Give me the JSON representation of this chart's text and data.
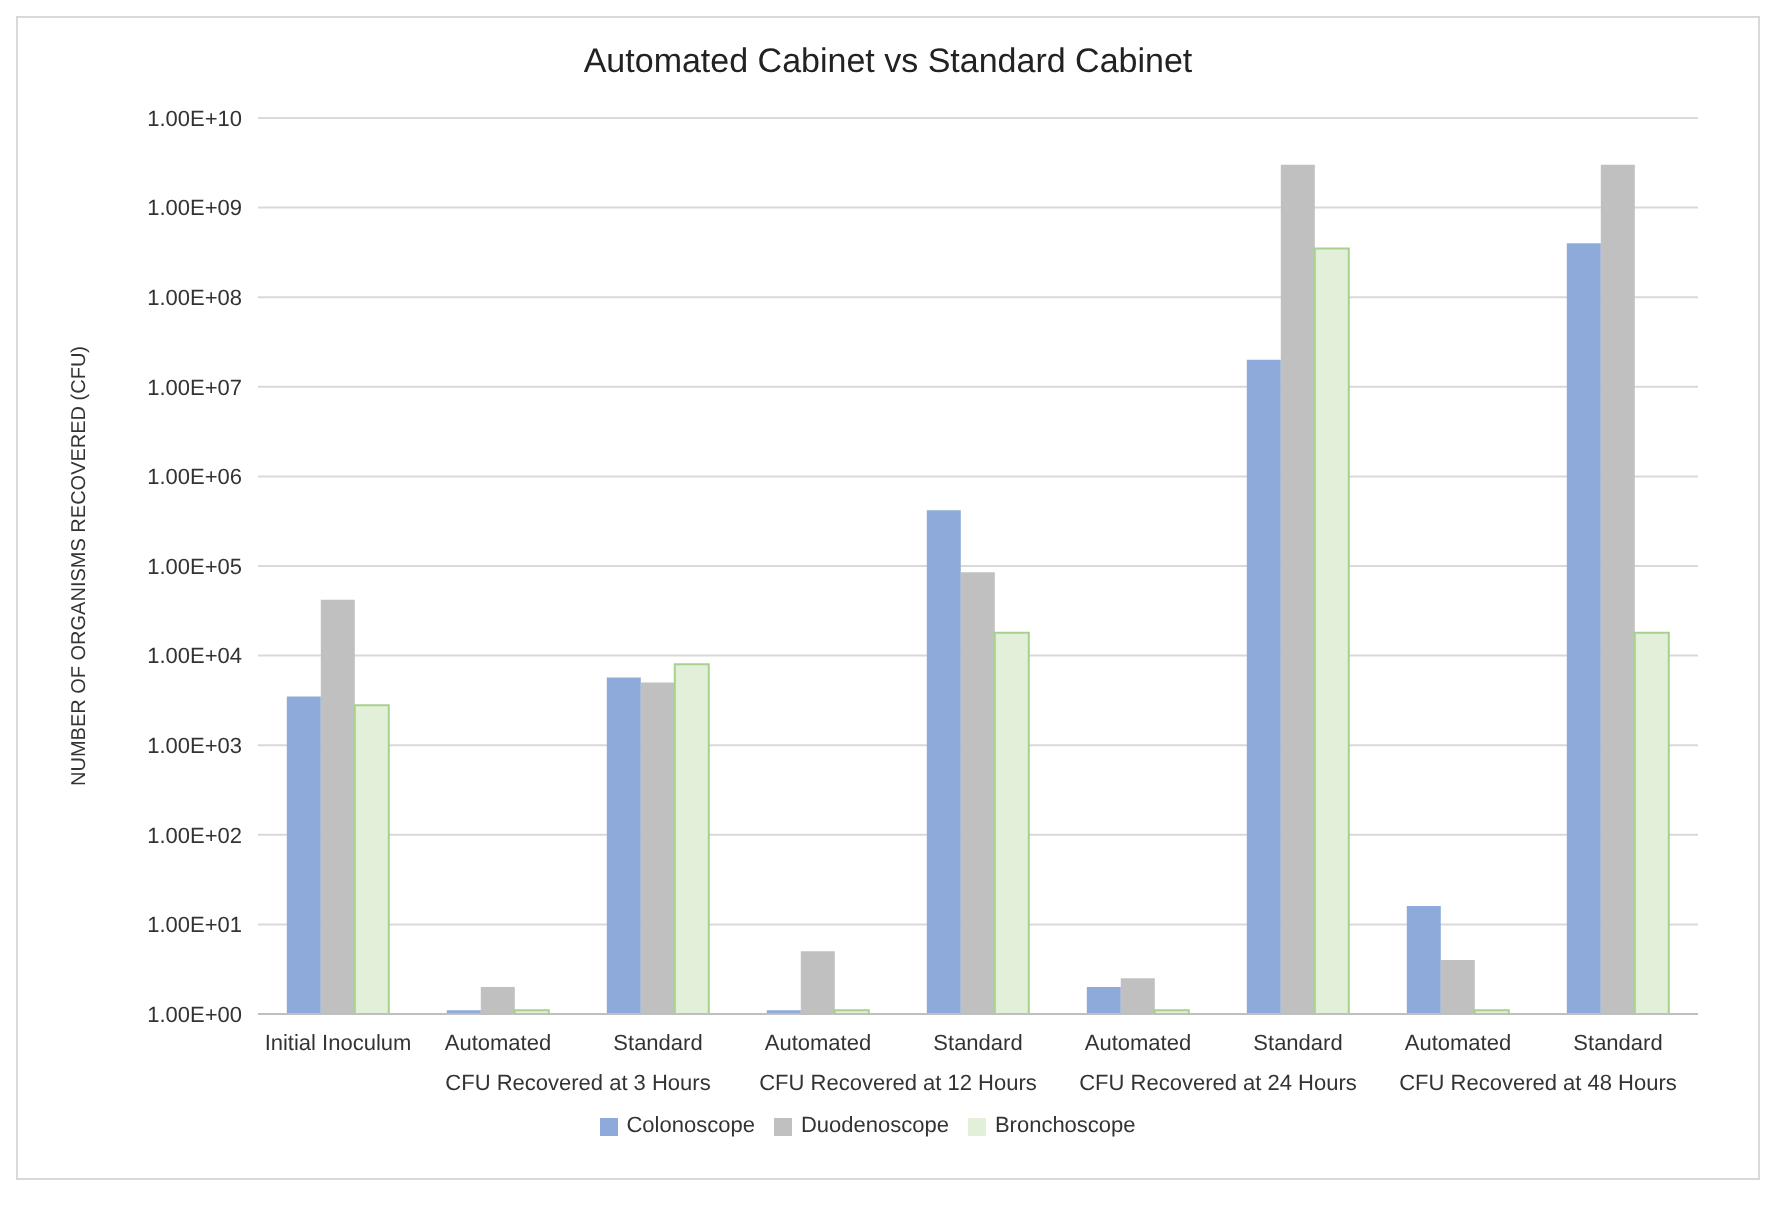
{
  "chart_data": {
    "type": "bar",
    "title": "Automated Cabinet vs Standard Cabinet",
    "ylabel": "NUMBER OF ORGANISMS RECOVERED (CFU)",
    "categories": [
      "Initial Inoculum",
      "Automated",
      "Standard",
      "Automated",
      "Standard",
      "Automated",
      "Standard",
      "Automated",
      "Standard"
    ],
    "annotations": [
      "CFU Recovered at 3 Hours",
      "CFU Recovered at 12 Hours",
      "CFU Recovered at 24 Hours",
      "CFU Recovered at 48 Hours"
    ],
    "series": [
      {
        "name": "Colonoscope",
        "color": "#8eaadb",
        "values": [
          3500,
          1.1,
          5700,
          1.1,
          420000,
          2,
          20000000,
          16,
          400000000
        ]
      },
      {
        "name": "Duodenoscope",
        "color": "#c0c0c0",
        "values": [
          42000,
          2,
          5000,
          5,
          85000,
          2.5,
          3000000000,
          4,
          3000000000
        ]
      },
      {
        "name": "Bronchoscope",
        "color": "#e2f0d9",
        "values": [
          2800,
          1.1,
          8000,
          1.1,
          18000,
          1.1,
          350000000,
          1.1,
          18000
        ]
      }
    ],
    "log": "y",
    "ylim": [
      1,
      10000000000
    ],
    "yticks": [
      {
        "value": 1,
        "label": "1.00E+00"
      },
      {
        "value": 10,
        "label": "1.00E+01"
      },
      {
        "value": 100,
        "label": "1.00E+02"
      },
      {
        "value": 1000,
        "label": "1.00E+03"
      },
      {
        "value": 10000,
        "label": "1.00E+04"
      },
      {
        "value": 100000,
        "label": "1.00E+05"
      },
      {
        "value": 1000000,
        "label": "1.00E+06"
      },
      {
        "value": 10000000,
        "label": "1.00E+07"
      },
      {
        "value": 100000000,
        "label": "1.00E+08"
      },
      {
        "value": 1000000000,
        "label": "1.00E+09"
      },
      {
        "value": 10000000000,
        "label": "1.00E+10"
      }
    ],
    "grid": "y",
    "legend": "bottom"
  }
}
